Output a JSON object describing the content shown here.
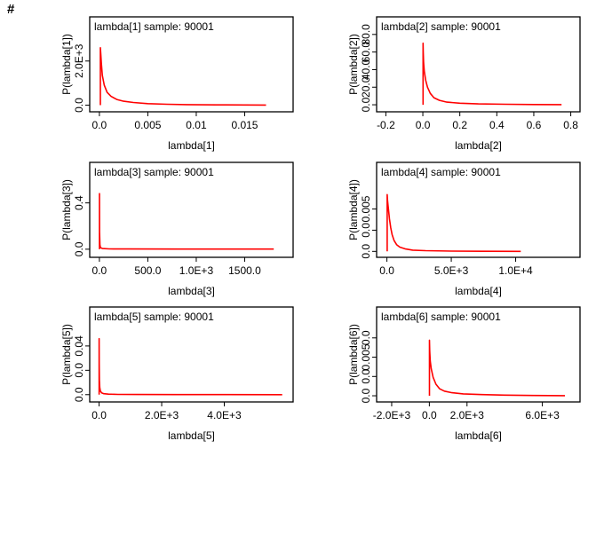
{
  "header": {
    "symbol": "#"
  },
  "colors": {
    "line": "#ff0000",
    "axis": "#000000"
  },
  "chart_data": [
    {
      "type": "line",
      "title": "lambda[1] sample: 90001",
      "xlabel": "lambda[1]",
      "ylabel": "P(lambda[1])",
      "xlim": [
        -0.001,
        0.02
      ],
      "ylim": [
        -300,
        4000
      ],
      "xticks": [
        {
          "v": 0,
          "label": "0.0"
        },
        {
          "v": 0.005,
          "label": "0.005"
        },
        {
          "v": 0.01,
          "label": "0.01"
        },
        {
          "v": 0.015,
          "label": "0.015"
        }
      ],
      "yticks": [
        {
          "v": 0,
          "label": "0.0"
        },
        {
          "v": 2000,
          "label": "2.0E+3"
        }
      ],
      "series": [
        {
          "x": [
            0.0001,
            0.00015,
            0.0002,
            0.0003,
            0.0005,
            0.0008,
            0.0012,
            0.0018,
            0.0025,
            0.0035,
            0.005,
            0.007,
            0.009,
            0.012,
            0.015,
            0.0172
          ],
          "y": [
            2600,
            2300,
            1900,
            1350,
            900,
            580,
            400,
            260,
            180,
            120,
            70,
            40,
            25,
            15,
            8,
            5
          ]
        }
      ]
    },
    {
      "type": "line",
      "title": "lambda[2] sample: 90001",
      "xlabel": "lambda[2]",
      "ylabel": "P(lambda[2])",
      "xlim": [
        -0.25,
        0.85
      ],
      "ylim": [
        -8,
        100
      ],
      "xticks": [
        {
          "v": -0.2,
          "label": "-0.2"
        },
        {
          "v": 0,
          "label": "0.0"
        },
        {
          "v": 0.2,
          "label": "0.2"
        },
        {
          "v": 0.4,
          "label": "0.4"
        },
        {
          "v": 0.6,
          "label": "0.6"
        },
        {
          "v": 0.8,
          "label": "0.8"
        }
      ],
      "yticks": [
        {
          "v": 0,
          "label": "0.0"
        },
        {
          "v": 20,
          "label": "20.0"
        },
        {
          "v": 40,
          "label": "40.0"
        },
        {
          "v": 60,
          "label": "60.0"
        },
        {
          "v": 80,
          "label": "80.0"
        }
      ],
      "series": [
        {
          "x": [
            0.001,
            0.002,
            0.004,
            0.008,
            0.015,
            0.025,
            0.04,
            0.06,
            0.09,
            0.13,
            0.2,
            0.3,
            0.45,
            0.6,
            0.75
          ],
          "y": [
            70,
            60,
            48,
            38,
            28,
            20,
            13,
            8,
            5,
            3,
            1.8,
            1,
            0.6,
            0.3,
            0.2
          ]
        }
      ]
    },
    {
      "type": "line",
      "title": "lambda[3] sample: 90001",
      "xlabel": "lambda[3]",
      "ylabel": "P(lambda[3])",
      "xlim": [
        -100,
        2000
      ],
      "ylim": [
        -0.07,
        0.75
      ],
      "xticks": [
        {
          "v": 0,
          "label": "0.0"
        },
        {
          "v": 500,
          "label": "500.0"
        },
        {
          "v": 1000,
          "label": "1.0E+3"
        },
        {
          "v": 1500,
          "label": "1500.0"
        }
      ],
      "yticks": [
        {
          "v": 0,
          "label": "0.0"
        },
        {
          "v": 0.4,
          "label": "0.4"
        }
      ],
      "series": [
        {
          "x": [
            0.5,
            2,
            5,
            10,
            30,
            100,
            300,
            800,
            1300,
            1800
          ],
          "y": [
            0.48,
            0.15,
            0.04,
            0.015,
            0.006,
            0.003,
            0.002,
            0.0015,
            0.001,
            0.001
          ]
        }
      ]
    },
    {
      "type": "line",
      "title": "lambda[4] sample: 90001",
      "xlabel": "lambda[4]",
      "ylabel": "P(lambda[4])",
      "xlim": [
        -800,
        15000
      ],
      "ylim": [
        -0.0007,
        0.0105
      ],
      "xticks": [
        {
          "v": 0,
          "label": "0.0"
        },
        {
          "v": 5000,
          "label": "5.0E+3"
        },
        {
          "v": 10000,
          "label": "1.0E+4"
        }
      ],
      "yticks": [
        {
          "v": 0,
          "label": "0.0"
        },
        {
          "v": 0.0025,
          "label": "0.0"
        },
        {
          "v": 0.005,
          "label": "0.005"
        }
      ],
      "series": [
        {
          "x": [
            20,
            50,
            100,
            150,
            200,
            300,
            400,
            550,
            750,
            1000,
            1400,
            2000,
            3000,
            5000,
            7500,
            10400
          ],
          "y": [
            0.0067,
            0.006,
            0.0053,
            0.0045,
            0.0038,
            0.0028,
            0.002,
            0.0013,
            0.0008,
            0.0005,
            0.0003,
            0.00015,
            8e-05,
            3e-05,
            1e-05,
            5e-06
          ]
        }
      ]
    },
    {
      "type": "line",
      "title": "lambda[5] sample: 90001",
      "xlabel": "lambda[5]",
      "ylabel": "P(lambda[5])",
      "xlim": [
        -300,
        6200
      ],
      "ylim": [
        -0.006,
        0.072
      ],
      "xticks": [
        {
          "v": 0,
          "label": "0.0"
        },
        {
          "v": 2000,
          "label": "2.0E+3"
        },
        {
          "v": 4000,
          "label": "4.0E+3"
        }
      ],
      "yticks": [
        {
          "v": 0,
          "label": "0.0"
        },
        {
          "v": 0.02,
          "label": "0.0"
        },
        {
          "v": 0.04,
          "label": "0.04"
        }
      ],
      "series": [
        {
          "x": [
            2,
            5,
            10,
            20,
            40,
            80,
            150,
            300,
            600,
            1200,
            2500,
            4000,
            5850
          ],
          "y": [
            0.046,
            0.025,
            0.012,
            0.006,
            0.003,
            0.0015,
            0.0008,
            0.0004,
            0.0002,
            0.0001,
            5e-05,
            2e-05,
            1e-05
          ]
        }
      ]
    },
    {
      "type": "line",
      "title": "lambda[6] sample: 90001",
      "xlabel": "lambda[6]",
      "ylabel": "P(lambda[6])",
      "xlim": [
        -2800,
        8000
      ],
      "ylim": [
        -0.0008,
        0.0115
      ],
      "xticks": [
        {
          "v": -2000,
          "label": "-2.0E+3"
        },
        {
          "v": 0,
          "label": "0.0"
        },
        {
          "v": 2000,
          "label": "2.0E+3"
        },
        {
          "v": 6000,
          "label": "6.0E+3"
        }
      ],
      "yticks": [
        {
          "v": 0,
          "label": "0.0"
        },
        {
          "v": 0.0025,
          "label": "0.0"
        },
        {
          "v": 0.005,
          "label": "0.005"
        },
        {
          "v": 0.0075,
          "label": "0.0"
        }
      ],
      "series": [
        {
          "x": [
            5,
            20,
            50,
            100,
            200,
            350,
            550,
            800,
            1200,
            1800,
            2800,
            4000,
            5500,
            7200
          ],
          "y": [
            0.0072,
            0.0058,
            0.0045,
            0.0035,
            0.0024,
            0.0015,
            0.0009,
            0.0006,
            0.0004,
            0.00025,
            0.00015,
            8e-05,
            4e-05,
            2e-05
          ]
        }
      ]
    }
  ]
}
